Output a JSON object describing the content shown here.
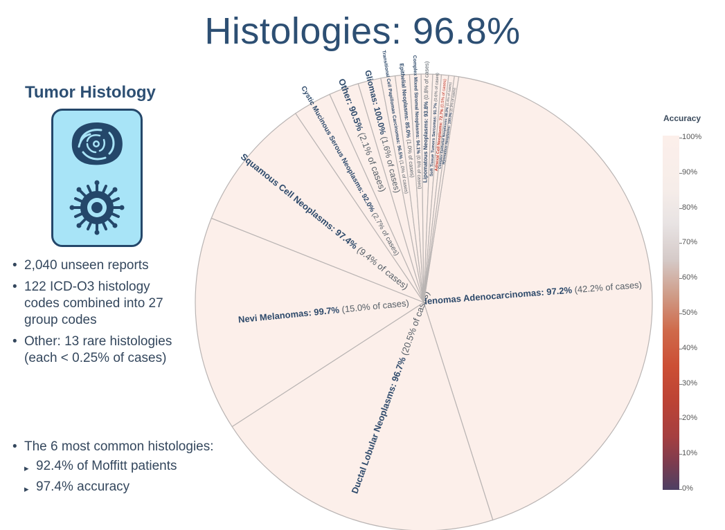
{
  "header": {
    "title": "Histologies: 96.8%"
  },
  "panel": {
    "title": "Tumor Histology",
    "bullets": [
      "2,040 unseen reports",
      "122 ICD-O3 histology codes combined into 27 group codes",
      "Other: 13 rare histologies (each < 0.25% of cases)"
    ],
    "bullet_common": "The 6 most common histologies:",
    "sub_bullets": [
      "92.4% of Moffitt patients",
      "97.4% accuracy"
    ],
    "bullet_glyph": "•",
    "sub_glyph": "▸"
  },
  "colors": {
    "title": "#2d4f73",
    "icon_bg": "#a8e4f7",
    "icon_border": "#24476a",
    "slice_fill": "#fcefea",
    "slice_edge": "#b9b4b3"
  },
  "chart_data": {
    "type": "pie",
    "colorbar": {
      "title": "Accuracy",
      "ticks": [
        "100%",
        "90%",
        "80%",
        "70%",
        "60%",
        "50%",
        "40%",
        "30%",
        "20%",
        "10%",
        "0%"
      ],
      "range": [
        0,
        100
      ]
    },
    "slices": [
      {
        "name": "Adenomas Adenocarcinomas",
        "accuracy": "97.2%",
        "share": 42.2,
        "share_label": "(42.2% of cases)"
      },
      {
        "name": "Ductal Lobular Neoplasms",
        "accuracy": "96.7%",
        "share": 20.5,
        "share_label": "(20.5% of cases)"
      },
      {
        "name": "Nevi Melanomas",
        "accuracy": "99.7%",
        "share": 15.0,
        "share_label": "(15.0% of cases)"
      },
      {
        "name": "Squamous Cell Neoplasms",
        "accuracy": "97.4%",
        "share": 9.4,
        "share_label": "(9.4% of cases)"
      },
      {
        "name": "Cystic Mucinous Serous Neoplasms",
        "accuracy": "92.0%",
        "share": 2.7,
        "share_label": "(2.7% of cases)"
      },
      {
        "name": "Other",
        "accuracy": "90.5%",
        "share": 2.1,
        "share_label": "(2.1% of cases)"
      },
      {
        "name": "Gliomas",
        "accuracy": "100.0%",
        "share": 1.6,
        "share_label": "(1.6% of cases)"
      },
      {
        "name": "Transitional Cell Papillomas Carcinomas",
        "accuracy": "96.5%",
        "share": 1.0,
        "share_label": "(1.0% of cases)"
      },
      {
        "name": "Epithelial Neoplasms",
        "accuracy": "85.0%",
        "share": 1.0,
        "share_label": "(1.0% of cases)"
      },
      {
        "name": "Complex Mixed Stromal Neoplasms",
        "accuracy": "94.1%",
        "share": 0.8,
        "share_label": "(0.8% of cases)"
      },
      {
        "name": "Lipomatous Neoplasms",
        "accuracy": "93.8%",
        "share": 0.8,
        "share_label": "(0.8% of cases)"
      },
      {
        "name": "Soft Tissue Tumors Sarcomas",
        "accuracy": "91.7%",
        "share": 0.6,
        "share_label": "(0.6% of cases)"
      },
      {
        "name": "Adnexal Cell Neoplasms",
        "accuracy": "72.7%",
        "share": 0.5,
        "share_label": "(0.5% of cases)"
      },
      {
        "name": "Complex Epithelial Neoplasms",
        "accuracy": "88.9%",
        "share": 0.4,
        "share_label": "(0.4% of cases)"
      },
      {
        "name": "Myomatous Neoplasms",
        "accuracy": "100.0%",
        "share": 0.3,
        "share_label": "(0.3% of cases)"
      }
    ]
  }
}
